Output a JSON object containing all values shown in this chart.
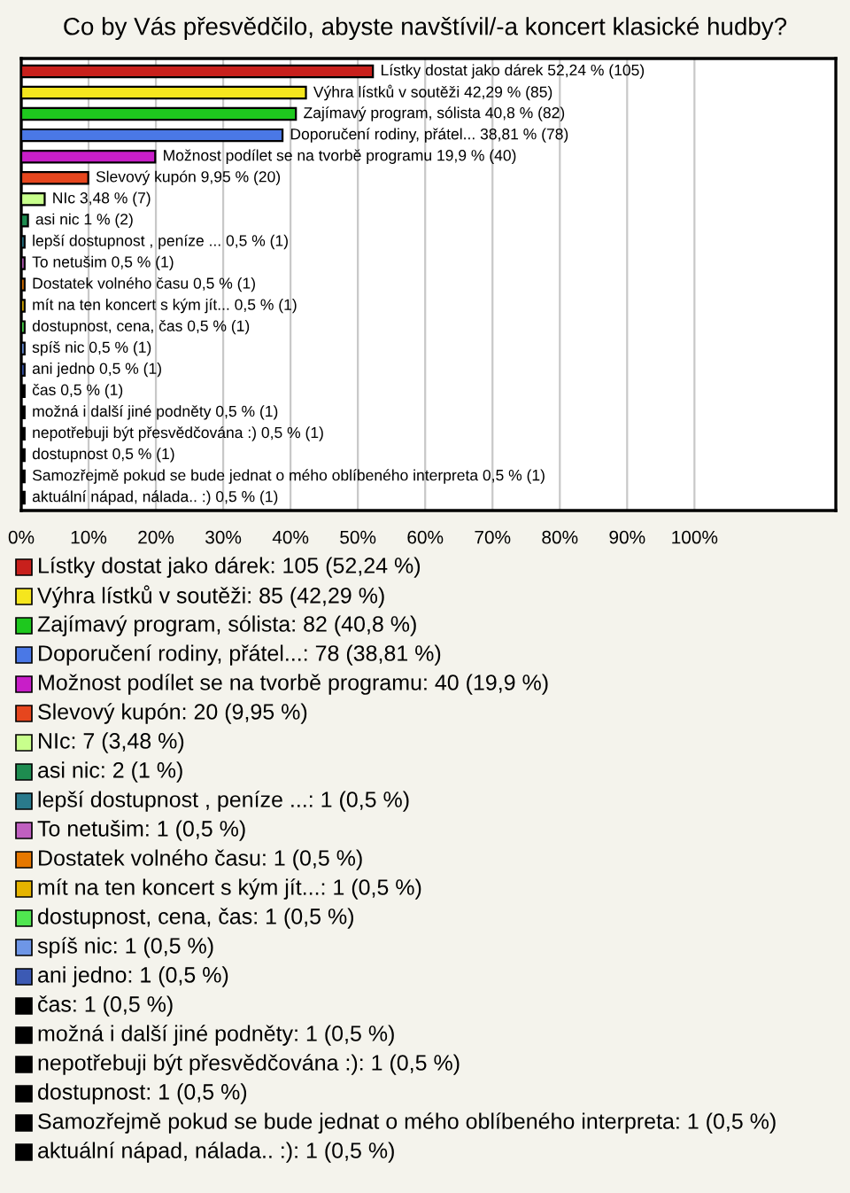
{
  "chart_data": {
    "type": "bar",
    "orientation": "horizontal",
    "title": "Co by Vás přesvědčilo, abyste navštívil/-a koncert klasické hudby?",
    "categories": [
      null,
      null,
      null,
      null,
      null,
      null,
      null,
      null,
      null,
      null,
      null,
      null,
      null,
      null,
      null,
      null,
      null,
      null,
      null,
      null,
      null
    ],
    "values": [
      52.24,
      42.29,
      40.8,
      38.81,
      19.9,
      9.95,
      3.48,
      1,
      0.5,
      0.5,
      0.5,
      0.5,
      0.5,
      0.5,
      0.5,
      0.5,
      0.5,
      0.5,
      0.5,
      0.5,
      0.5
    ],
    "colors": [
      "#c8201c",
      "#f5e61e",
      "#1ec81e",
      "#4a78e6",
      "#c81ec8",
      "#e6461e",
      "#c8ff8c",
      "#1e8c50",
      "#2a7a8c",
      "#c060c0",
      "#e67800",
      "#e6b400",
      "#50e650",
      "#6e96e6",
      "#3c5ab4",
      "#000000",
      "#000000",
      "#000000",
      "#000000",
      "#000000",
      "#000000"
    ],
    "value_labels": [
      "Lístky dostat jako dárek 52,24 % (105)",
      "Výhra lístků v soutěži 42,29 % (85)",
      "Zajímavý program, sólista 40,8 % (82)",
      "Doporučení rodiny, přátel... 38,81 % (78)",
      "Možnost podílet se na tvorbě programu 19,9 % (40)",
      "Slevový kupón 9,95 % (20)",
      "NIc 3,48 % (7)",
      "asi nic 1 % (2)",
      "lepší dostupnost , peníze ... 0,5 % (1)",
      "To netušim 0,5 % (1)",
      "Dostatek volného času 0,5 % (1)",
      "mít na ten koncert s kým jít... 0,5 % (1)",
      "dostupnost, cena, čas 0,5 % (1)",
      "spíš nic 0,5 % (1)",
      "ani jedno 0,5 % (1)",
      "čas 0,5 % (1)",
      "možná i další jiné podněty 0,5 % (1)",
      "nepotřebuji být přesvědčována :) 0,5 % (1)",
      "dostupnost 0,5 % (1)",
      "Samozřejmě pokud se bude jednat o mého oblíbeného interpreta 0,5 % (1)",
      "aktuální nápad, nálada.. :) 0,5 % (1)"
    ],
    "annotations": [
      "Lístky dostat jako dárek: 105 (52,24 %)",
      "Výhra lístků v soutěži: 85 (42,29 %)",
      "Zajímavý program, sólista: 82 (40,8 %)",
      "Doporučení rodiny, přátel...: 78 (38,81 %)",
      "Možnost podílet se na tvorbě programu: 40 (19,9 %)",
      "Slevový kupón: 20 (9,95 %)",
      "NIc: 7 (3,48 %)",
      "asi nic: 2 (1 %)",
      "lepší dostupnost , peníze ...: 1 (0,5 %)",
      "To netušim: 1 (0,5 %)",
      "Dostatek volného času: 1 (0,5 %)",
      "mít na ten koncert s kým jít...: 1 (0,5 %)",
      "dostupnost, cena, čas: 1 (0,5 %)",
      "spíš nic: 1 (0,5 %)",
      "ani jedno: 1 (0,5 %)",
      "čas: 1 (0,5 %)",
      "možná i další jiné podněty: 1 (0,5 %)",
      "nepotřebuji být přesvědčována :): 1 (0,5 %)",
      "dostupnost: 1 (0,5 %)",
      "Samozřejmě pokud se bude jednat o mého oblíbeného interpreta: 1 (0,5 %)",
      "aktuální nápad, nálada.. :): 1 (0,5 %)"
    ],
    "xlim": [
      0,
      121
    ],
    "xticks": [
      {
        "value": 0,
        "label": "0%"
      },
      {
        "value": 10,
        "label": "10%"
      },
      {
        "value": 20,
        "label": "20%"
      },
      {
        "value": 30,
        "label": "30%"
      },
      {
        "value": 40,
        "label": "40%"
      },
      {
        "value": 50,
        "label": "50%"
      },
      {
        "value": 60,
        "label": "60%"
      },
      {
        "value": 70,
        "label": "70%"
      },
      {
        "value": 80,
        "label": "80%"
      },
      {
        "value": 90,
        "label": "90%"
      },
      {
        "value": 100,
        "label": "100%"
      }
    ],
    "grid": "x",
    "tick_labels": "x"
  }
}
